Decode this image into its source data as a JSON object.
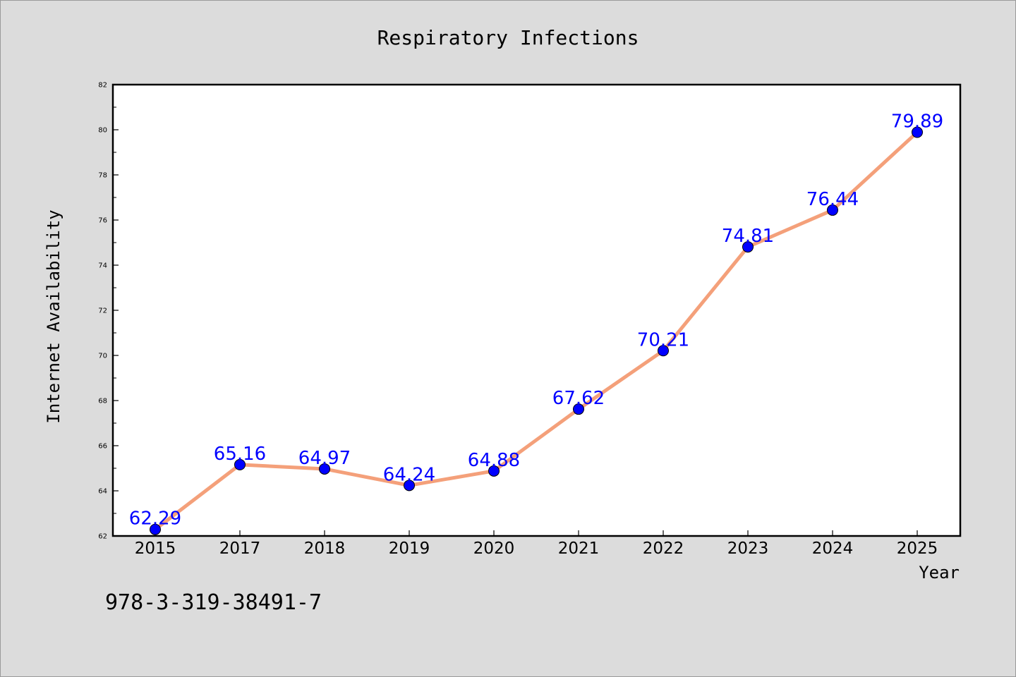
{
  "chart_data": {
    "type": "line",
    "title": "Respiratory Infections",
    "xlabel": "Year",
    "ylabel": "Internet Availability",
    "categories": [
      "2015",
      "2017",
      "2018",
      "2019",
      "2020",
      "2021",
      "2022",
      "2023",
      "2024",
      "2025"
    ],
    "series": [
      {
        "values": [
          62.29,
          65.16,
          64.97,
          64.24,
          64.88,
          67.62,
          70.21,
          74.81,
          76.44,
          79.89
        ],
        "labels": [
          "62.29",
          "65.16",
          "64.97",
          "64.24",
          "64.88",
          "67.62",
          "70.21",
          "74.81",
          "76.44",
          "79.89"
        ],
        "line_color": "#f4a07a",
        "marker_color": "#0000ff",
        "label_color": "#0000ff"
      }
    ],
    "ylim": [
      62,
      82
    ],
    "yticks": [
      "62",
      "64",
      "66",
      "68",
      "70",
      "72",
      "74",
      "76",
      "78",
      "80",
      "82"
    ],
    "grid": false,
    "legend": "none"
  },
  "footer": {
    "code": "978-3-319-38491-7"
  }
}
